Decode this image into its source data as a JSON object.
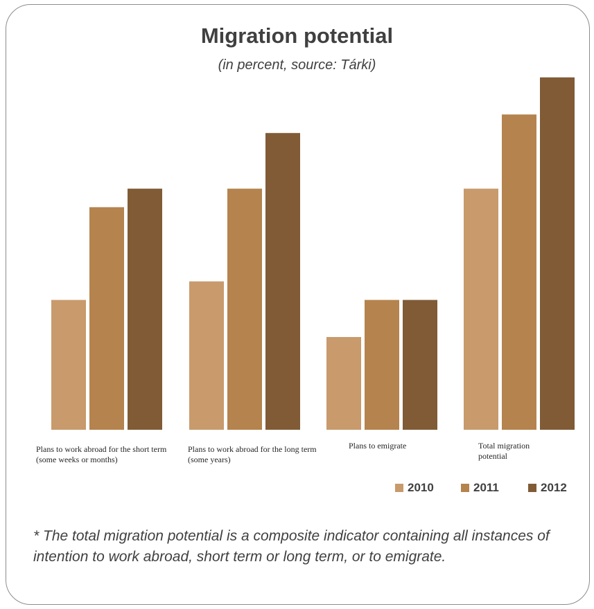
{
  "chart_data": {
    "type": "bar",
    "title": "Migration potential",
    "subtitle": "(in percent, source: Tárki)",
    "categories": [
      "Plans to work abroad for the short term (some weeks or months)",
      "Plans to work abroad for the long term (some years)",
      "Plans to emigrate",
      "Total migration potential"
    ],
    "series": [
      {
        "name": "2010",
        "values": [
          7,
          8,
          5,
          13
        ],
        "color": "#C89A6C"
      },
      {
        "name": "2011",
        "values": [
          12,
          13,
          7,
          17
        ],
        "color": "#B5834D"
      },
      {
        "name": "2012",
        "values": [
          13,
          16,
          7,
          19
        ],
        "color": "#805B36"
      }
    ],
    "ylim": [
      0,
      20
    ],
    "grid": false,
    "legend_position": "bottom-right",
    "note": "* The total migration potential is a composite indicator containing all instances of intention to work abroad, short term or long term, or to emigrate."
  }
}
